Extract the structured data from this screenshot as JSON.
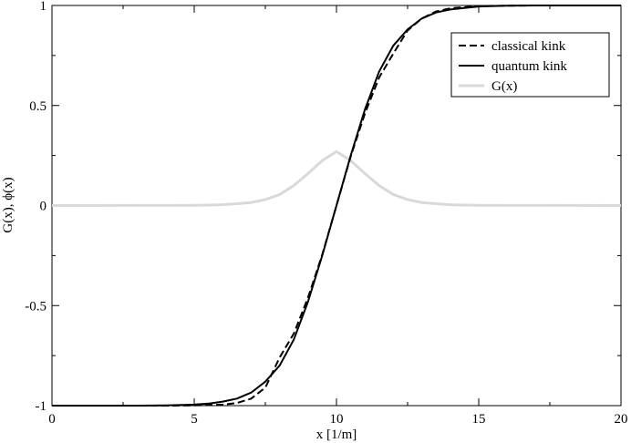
{
  "chart_data": {
    "type": "line",
    "xlabel": "x  [1/m]",
    "ylabel": "G(x),  ϕ(x)",
    "xlim": [
      0,
      20
    ],
    "ylim": [
      -1,
      1
    ],
    "x_ticks": [
      "0",
      "5",
      "10",
      "15",
      "20"
    ],
    "y_ticks": [
      "-1",
      "-0.5",
      "0",
      "0.5",
      "1"
    ],
    "grid": false,
    "legend_position": "top-right",
    "series": [
      {
        "name": "classical kink",
        "style": "dashed",
        "color": "#000000",
        "x": [
          0,
          4,
          5,
          6,
          6.5,
          7,
          7.5,
          8,
          8.5,
          9,
          9.5,
          10,
          10.5,
          11,
          11.5,
          12,
          12.5,
          13,
          13.5,
          14,
          15,
          16,
          17,
          20
        ],
        "y": [
          -1,
          -1,
          -0.999,
          -0.995,
          -0.987,
          -0.965,
          -0.91,
          -0.76,
          -0.64,
          -0.46,
          -0.245,
          0.0,
          0.245,
          0.46,
          0.64,
          0.76,
          0.875,
          0.935,
          0.97,
          0.986,
          0.997,
          0.999,
          1,
          1
        ]
      },
      {
        "name": "quantum kink",
        "style": "solid",
        "color": "#000000",
        "x": [
          0,
          3,
          4,
          5,
          5.5,
          6,
          6.5,
          7,
          7.5,
          8,
          8.5,
          9,
          9.5,
          10,
          10.5,
          11,
          11.5,
          12,
          12.5,
          13,
          13.5,
          14,
          15,
          16,
          17,
          20
        ],
        "y": [
          -1,
          -1,
          -0.999,
          -0.995,
          -0.99,
          -0.98,
          -0.965,
          -0.935,
          -0.88,
          -0.8,
          -0.67,
          -0.48,
          -0.25,
          0.0,
          0.25,
          0.48,
          0.67,
          0.8,
          0.88,
          0.935,
          0.965,
          0.98,
          0.995,
          0.999,
          1,
          1
        ]
      },
      {
        "name": "G(x)",
        "style": "solid",
        "color": "#d9d9d9",
        "x": [
          0,
          5,
          6,
          7,
          7.5,
          8,
          8.5,
          9,
          9.5,
          10,
          10.5,
          11,
          11.5,
          12,
          12.5,
          13,
          14,
          15,
          20
        ],
        "y": [
          0,
          0.001,
          0.004,
          0.015,
          0.03,
          0.055,
          0.1,
          0.16,
          0.225,
          0.27,
          0.225,
          0.16,
          0.1,
          0.055,
          0.03,
          0.015,
          0.004,
          0.001,
          0
        ]
      }
    ]
  }
}
